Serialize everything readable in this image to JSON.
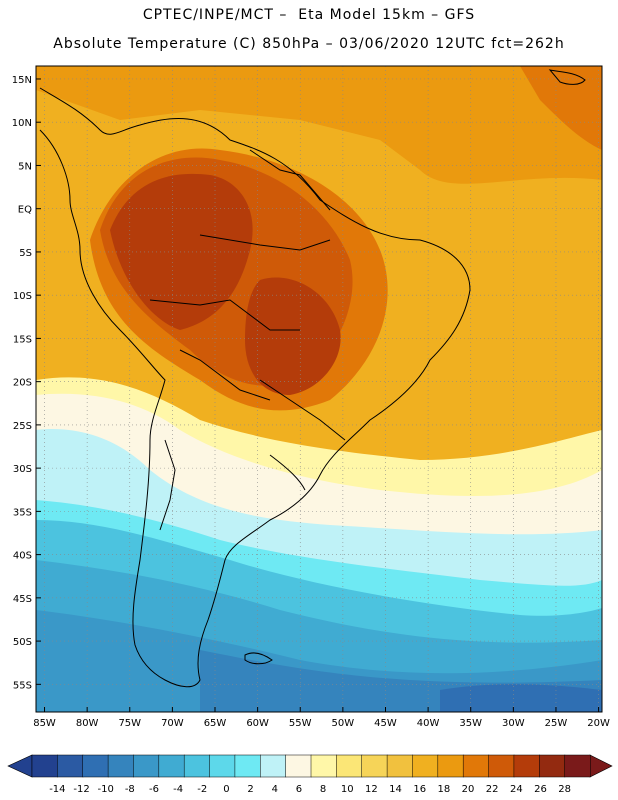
{
  "header": {
    "line1": "CPTEC/INPE/MCT –  Eta Model 15km – GFS",
    "line2": "Absolute Temperature (C) 850hPa – 03/06/2020 12UTC fct=262h"
  },
  "map": {
    "lat_labels": [
      "15N",
      "10N",
      "5N",
      "EQ",
      "5S",
      "10S",
      "15S",
      "20S",
      "25S",
      "30S",
      "35S",
      "40S",
      "45S",
      "50S",
      "55S"
    ],
    "lon_labels": [
      "85W",
      "80W",
      "75W",
      "70W",
      "65W",
      "60W",
      "55W",
      "50W",
      "45W",
      "40W",
      "35W",
      "30W",
      "25W",
      "20W"
    ],
    "grid": "dotted"
  },
  "colorbar": {
    "labels": [
      "-14",
      "-12",
      "-10",
      "-8",
      "-6",
      "-4",
      "-2",
      "0",
      "2",
      "4",
      "6",
      "8",
      "10",
      "12",
      "14",
      "16",
      "18",
      "20",
      "22",
      "24",
      "26",
      "28"
    ],
    "colors": [
      "#22418f",
      "#2b5aa3",
      "#2f6fb3",
      "#3584bd",
      "#3a98c8",
      "#40abd2",
      "#4cc3df",
      "#5dd8ea",
      "#6ee9f3",
      "#bff2f7",
      "#fdf7e3",
      "#fff7a8",
      "#fbe676",
      "#f6d458",
      "#f1c13e",
      "#f0b020",
      "#eb9a10",
      "#e17808",
      "#cf5a08",
      "#b43c0a",
      "#932a10",
      "#7a1a1a"
    ]
  }
}
